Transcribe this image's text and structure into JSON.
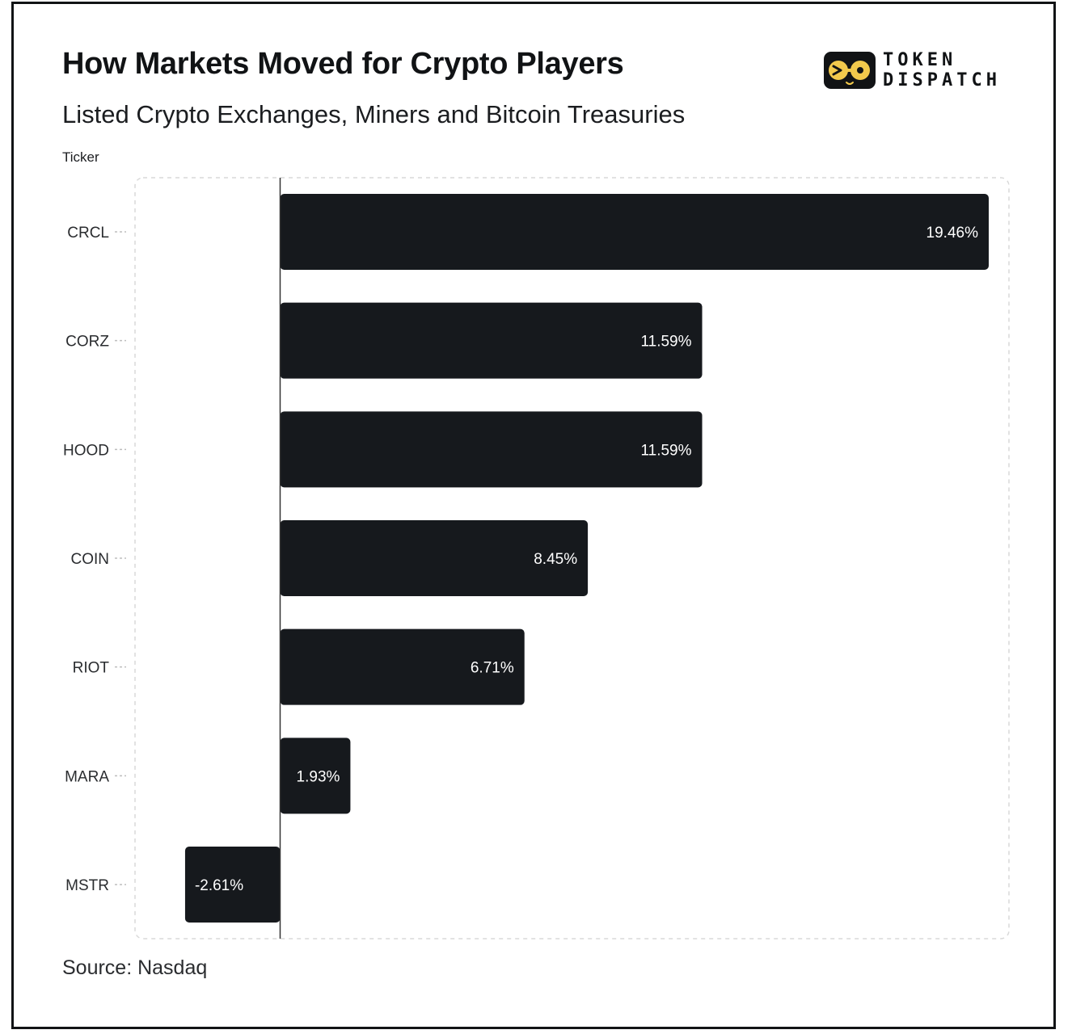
{
  "header": {
    "title": "How Markets Moved for Crypto Players",
    "subtitle": "Listed Crypto Exchanges, Miners and Bitcoin Treasuries"
  },
  "logo": {
    "line1": "TOKEN",
    "line2": "DISPATCH",
    "icon": "goggles-face-icon"
  },
  "footer": {
    "source": "Source: Nasdaq"
  },
  "colors": {
    "bar": "#16191d",
    "text": "#111315",
    "grid": "#d9d9d9"
  },
  "chart_data": {
    "type": "bar",
    "orientation": "horizontal",
    "title": "How Markets Moved for Crypto Players",
    "subtitle": "Listed Crypto Exchanges, Miners and Bitcoin Treasuries",
    "ylabel": "Ticker",
    "xlabel": "",
    "categories": [
      "CRCL",
      "CORZ",
      "HOOD",
      "COIN",
      "RIOT",
      "MARA",
      "MSTR"
    ],
    "values": [
      19.46,
      11.59,
      11.59,
      8.45,
      6.71,
      1.93,
      -2.61
    ],
    "value_labels": [
      "19.46%",
      "11.59%",
      "11.59%",
      "8.45%",
      "6.71%",
      "1.93%",
      "-2.61%"
    ],
    "xlim": [
      -3.5,
      20
    ],
    "grid": false,
    "source": "Nasdaq"
  }
}
